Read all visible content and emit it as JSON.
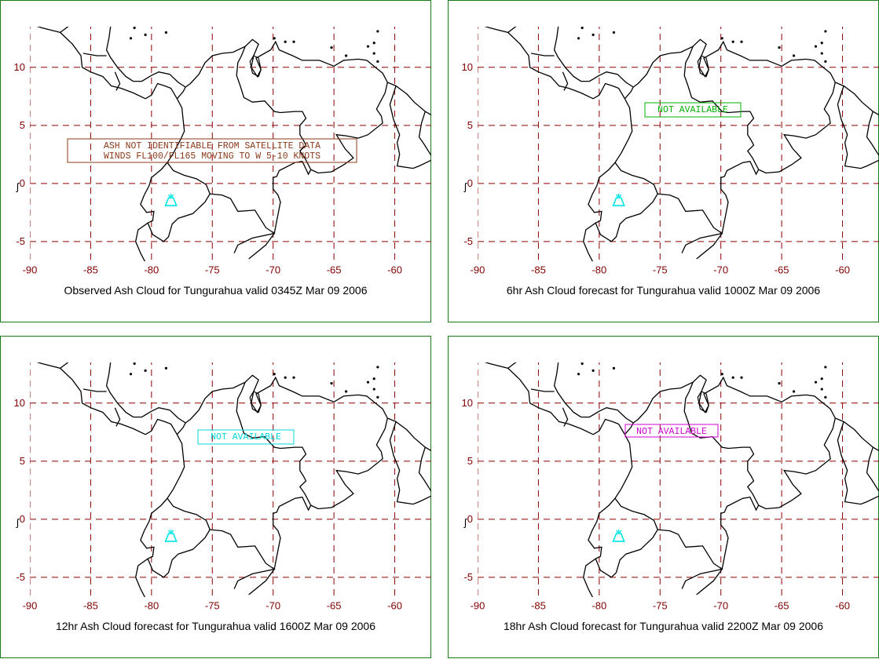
{
  "map": {
    "x_ticks": [
      "-90",
      "-85",
      "-80",
      "-75",
      "-70",
      "-65",
      "-60"
    ],
    "y_ticks": [
      "10",
      "5",
      "0",
      "-5"
    ],
    "x_range": [
      -90,
      -57
    ],
    "y_range": [
      -6.7,
      13.5
    ],
    "volcano": {
      "name": "Tungurahua",
      "lon": -78.4,
      "lat": -1.5,
      "color": "#00e5e5"
    },
    "grid_color": "#8b0000",
    "tick_color": "#800000",
    "coast_color": "#000000"
  },
  "panels": [
    {
      "caption": "Observed Ash Cloud for Tungurahua valid 0345Z Mar 09 2006",
      "box_lines": [
        "ASH NOT IDENTIFIABLE FROM SATELLITE DATA",
        "WINDS FL100/FL165 MOVING TO W 5-10 KNOTS"
      ],
      "box_color": "#8b3a1a"
    },
    {
      "caption": "6hr Ash Cloud forecast for Tungurahua valid 1000Z Mar 09 2006",
      "box_lines": [
        "NOT AVAILABLE"
      ],
      "box_color": "#00b000"
    },
    {
      "caption": "12hr Ash Cloud forecast for Tungurahua valid 1600Z Mar 09 2006",
      "box_lines": [
        "NOT AVAILABLE"
      ],
      "box_color": "#00d8d8"
    },
    {
      "caption": "18hr Ash Cloud forecast for Tungurahua valid 2200Z Mar 09 2006",
      "box_lines": [
        "NOT AVAILABLE"
      ],
      "box_color": "#d000d0"
    }
  ]
}
